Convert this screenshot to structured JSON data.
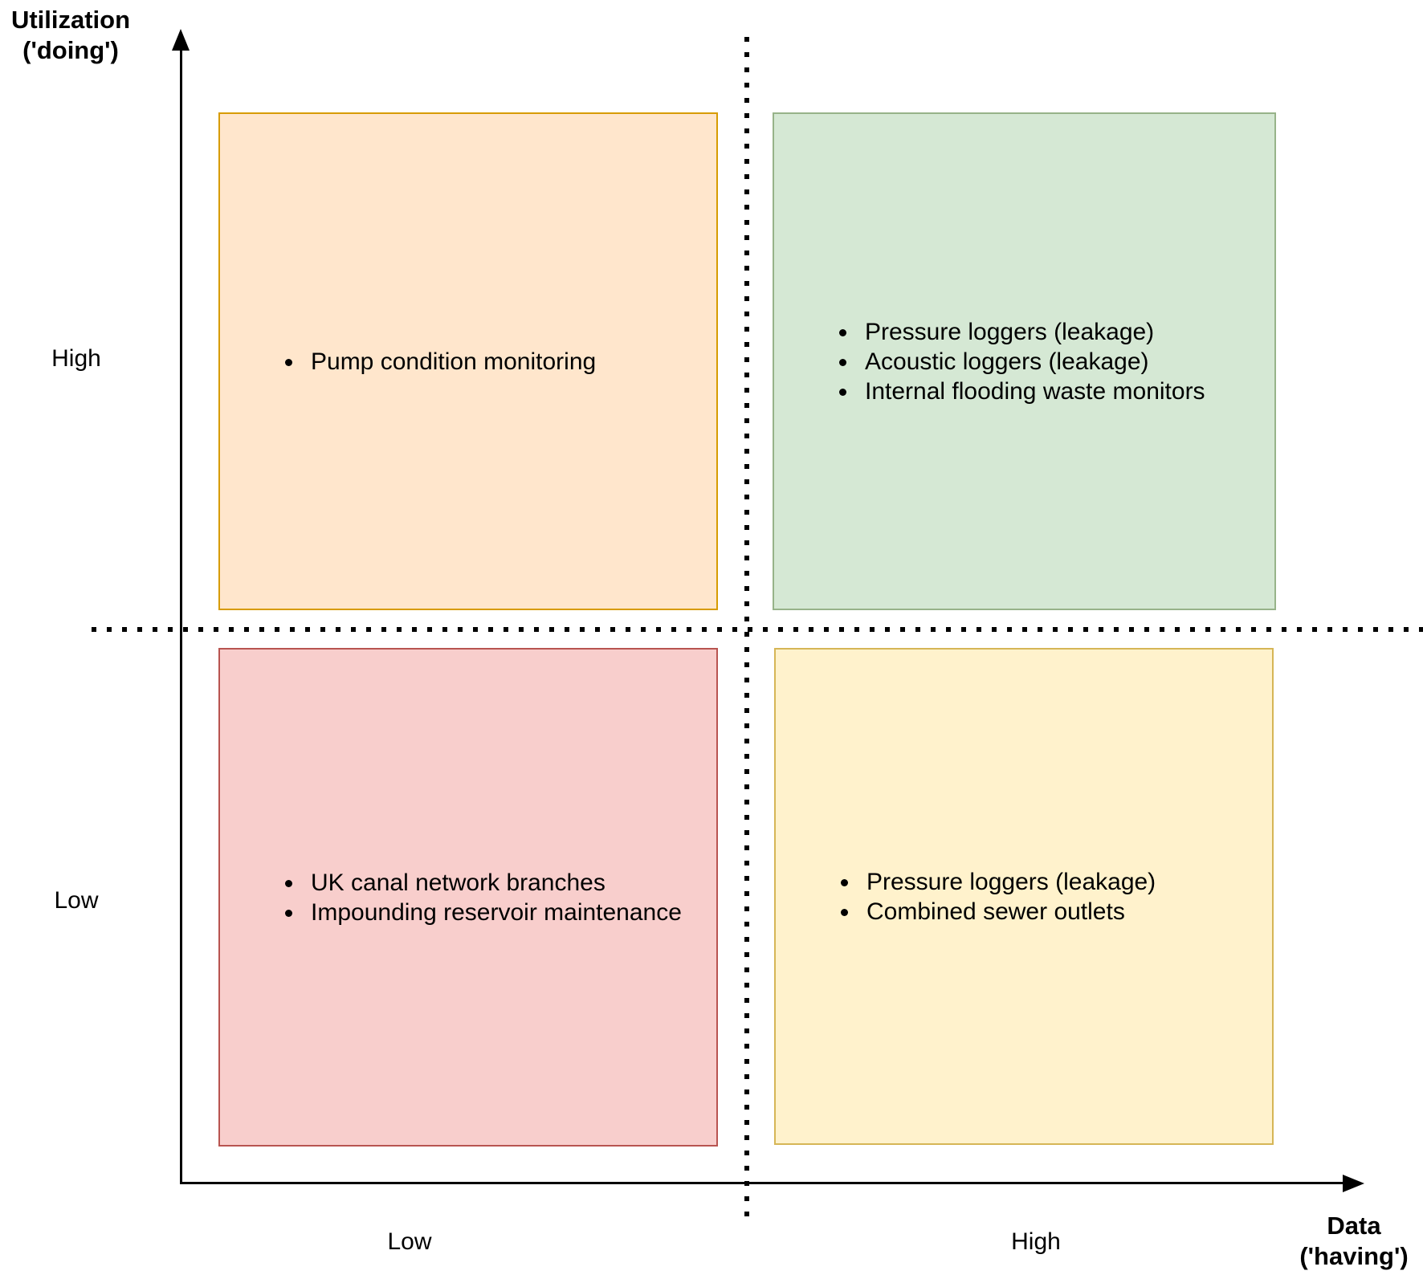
{
  "y_axis": {
    "title_line1": "Utilization",
    "title_line2": "('doing')",
    "tick_high": "High",
    "tick_low": "Low"
  },
  "x_axis": {
    "title_line1": "Data",
    "title_line2": "('having')",
    "tick_low": "Low",
    "tick_high": "High"
  },
  "colors": {
    "axis": "#000000",
    "divider_dots": "#000000"
  },
  "quadrants": [
    {
      "position": "top-left",
      "meaning": "high utilization, low data",
      "fill": "#FFE6CC",
      "stroke": "#D79B00",
      "items": [
        "Pump condition monitoring"
      ]
    },
    {
      "position": "top-right",
      "meaning": "high utilization, high data",
      "fill": "#D5E8D4",
      "stroke": "#97B389",
      "items": [
        "Pressure loggers (leakage)",
        "Acoustic loggers (leakage)",
        "Internal flooding waste monitors"
      ]
    },
    {
      "position": "bottom-left",
      "meaning": "low utilization, low data",
      "fill": "#F8CECC",
      "stroke": "#B85450",
      "items": [
        "UK canal network branches",
        "Impounding reservoir maintenance"
      ]
    },
    {
      "position": "bottom-right",
      "meaning": "low utilization, high data",
      "fill": "#FFF2CC",
      "stroke": "#D6B656",
      "items": [
        "Pressure loggers (leakage)",
        "Combined sewer outlets"
      ]
    }
  ]
}
